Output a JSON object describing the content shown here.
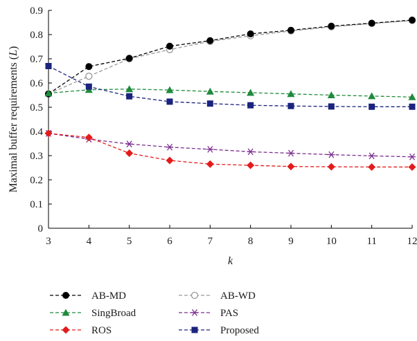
{
  "chart_data": {
    "type": "line",
    "xlabel": "k",
    "ylabel": "Maximal buffer requirements (L)",
    "xlim": [
      3,
      12
    ],
    "ylim": [
      0,
      0.9
    ],
    "x": [
      3,
      4,
      5,
      6,
      7,
      8,
      9,
      10,
      11,
      12
    ],
    "x_ticks": [
      "3",
      "4",
      "5",
      "6",
      "7",
      "8",
      "9",
      "10",
      "11",
      "12"
    ],
    "y_ticks": [
      "0",
      "0.1",
      "0.2",
      "0.3",
      "0.4",
      "0.5",
      "0.6",
      "0.7",
      "0.8",
      "0.9"
    ],
    "grid": false,
    "legend_position": "bottom",
    "series": [
      {
        "name": "AB-MD",
        "color": "#000000",
        "marker": "filled-circle",
        "values": [
          0.555,
          0.668,
          0.702,
          0.752,
          0.775,
          0.803,
          0.818,
          0.835,
          0.847,
          0.86
        ]
      },
      {
        "name": "AB-WD",
        "color": "#999999",
        "marker": "open-circle",
        "values": [
          0.555,
          0.628,
          0.7,
          0.738,
          0.772,
          0.795,
          0.815,
          0.832,
          0.846,
          0.858
        ]
      },
      {
        "name": "SingBroad",
        "color": "#1f8a3c",
        "marker": "triangle",
        "values": [
          0.558,
          0.572,
          0.575,
          0.571,
          0.565,
          0.56,
          0.555,
          0.55,
          0.546,
          0.542
        ]
      },
      {
        "name": "PAS",
        "color": "#7b2d8e",
        "marker": "asterisk",
        "values": [
          0.392,
          0.368,
          0.348,
          0.335,
          0.326,
          0.316,
          0.31,
          0.304,
          0.299,
          0.295
        ]
      },
      {
        "name": "ROS",
        "color": "#e41b1b",
        "marker": "diamond",
        "values": [
          0.392,
          0.375,
          0.31,
          0.28,
          0.265,
          0.26,
          0.255,
          0.254,
          0.253,
          0.253
        ]
      },
      {
        "name": "Proposed",
        "color": "#1a237e",
        "marker": "square",
        "values": [
          0.67,
          0.585,
          0.545,
          0.523,
          0.515,
          0.508,
          0.505,
          0.503,
          0.502,
          0.502
        ]
      }
    ]
  }
}
